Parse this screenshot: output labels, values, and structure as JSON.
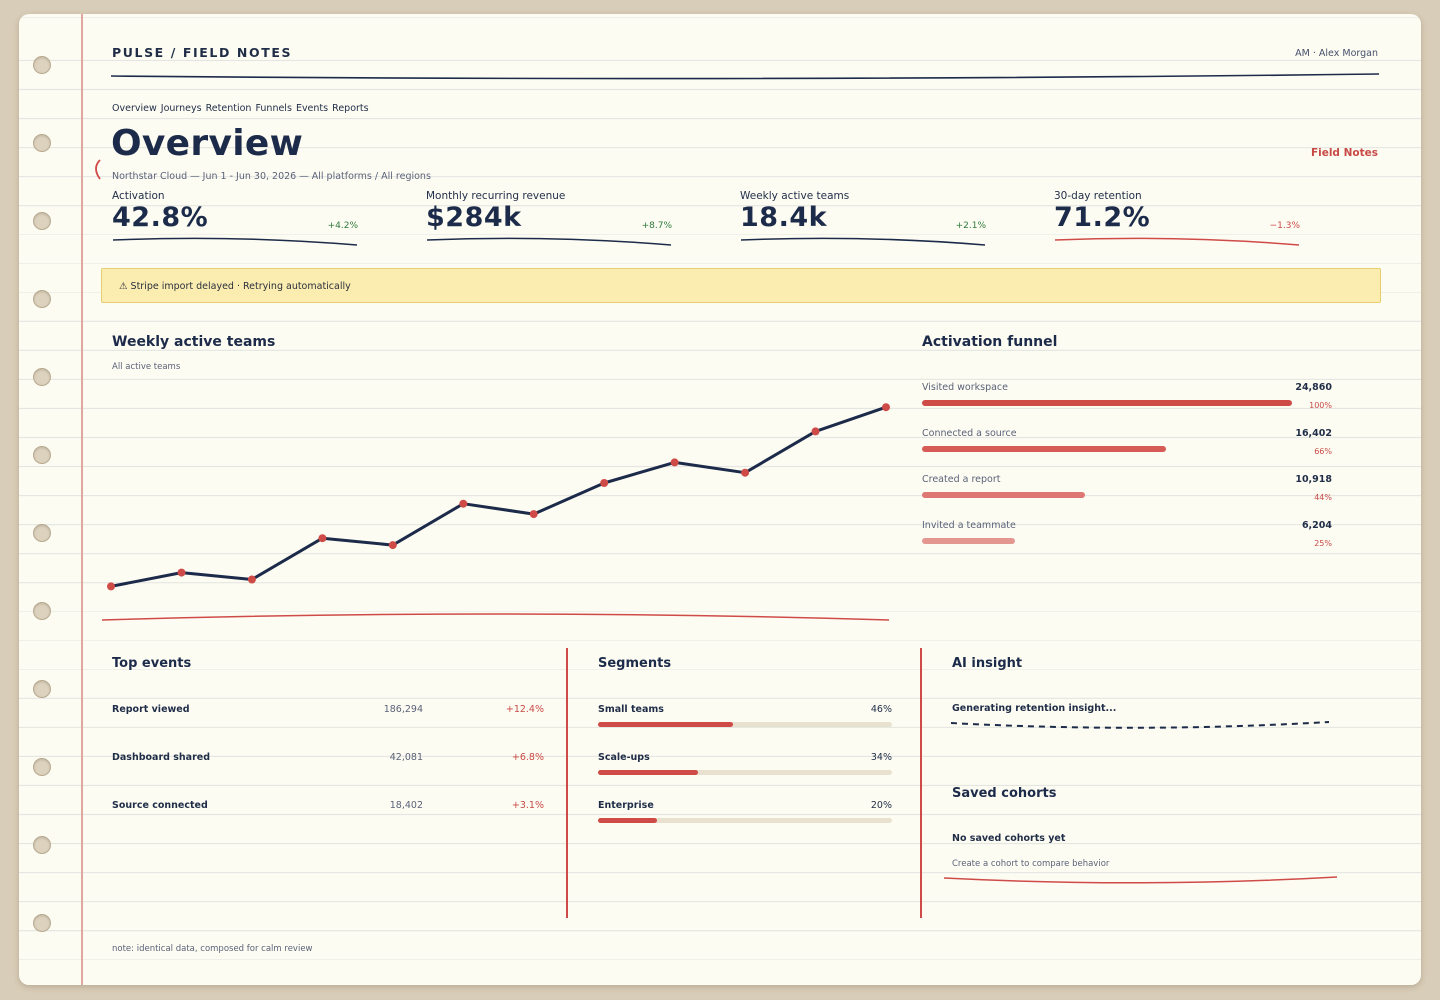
{
  "app": {
    "brand": "PULSE / FIELD NOTES",
    "user": "AM · Alex Morgan"
  },
  "nav": {
    "items": [
      "Overview",
      "Journeys",
      "Retention",
      "Funnels",
      "Events",
      "Reports"
    ]
  },
  "page": {
    "title": "Overview",
    "subtitle": "Northstar Cloud — Jun 1 - Jun 30, 2026 — All platforms / All regions",
    "notebook_label": "Field Notes"
  },
  "kpis": [
    {
      "label": "Activation",
      "value": "42.8%",
      "delta": "+4.2%",
      "trend": "up"
    },
    {
      "label": "Monthly recurring revenue",
      "value": "$284k",
      "delta": "+8.7%",
      "trend": "up"
    },
    {
      "label": "Weekly active teams",
      "value": "18.4k",
      "delta": "+2.1%",
      "trend": "up"
    },
    {
      "label": "30-day retention",
      "value": "71.2%",
      "delta": "−1.3%",
      "trend": "down"
    }
  ],
  "alert": {
    "icon": "warning-icon",
    "text": "⚠ Stripe import delayed · Retrying automatically"
  },
  "weekly_chart": {
    "title": "Weekly active teams",
    "subtitle": "All active teams"
  },
  "chart_data": {
    "type": "line",
    "title": "Weekly active teams",
    "subtitle": "All active teams",
    "x": [
      1,
      2,
      3,
      4,
      5,
      6,
      7,
      8,
      9,
      10,
      11,
      12
    ],
    "series": [
      {
        "values": [
          14.3,
          14.7,
          14.5,
          15.7,
          15.5,
          16.7,
          16.4,
          17.3,
          17.9,
          17.6,
          18.8,
          19.5
        ]
      }
    ],
    "ylim": [
      13.5,
      20.0
    ],
    "grid": false
  },
  "funnel": {
    "title": "Activation funnel",
    "steps": [
      {
        "label": "Visited workspace",
        "count": "24,860",
        "pct": "100%",
        "fraction": 1.0
      },
      {
        "label": "Connected a source",
        "count": "16,402",
        "pct": "66%",
        "fraction": 0.66
      },
      {
        "label": "Created a report",
        "count": "10,918",
        "pct": "44%",
        "fraction": 0.44
      },
      {
        "label": "Invited a teammate",
        "count": "6,204",
        "pct": "25%",
        "fraction": 0.25
      }
    ]
  },
  "top_events": {
    "title": "Top events",
    "rows": [
      {
        "name": "Report viewed",
        "count": "186,294",
        "delta": "+12.4%"
      },
      {
        "name": "Dashboard shared",
        "count": "42,081",
        "delta": "+6.8%"
      },
      {
        "name": "Source connected",
        "count": "18,402",
        "delta": "+3.1%"
      }
    ]
  },
  "segments": {
    "title": "Segments",
    "rows": [
      {
        "name": "Small teams",
        "pct": "46%",
        "fraction": 0.46
      },
      {
        "name": "Scale-ups",
        "pct": "34%",
        "fraction": 0.34
      },
      {
        "name": "Enterprise",
        "pct": "20%",
        "fraction": 0.2
      }
    ]
  },
  "ai_insight": {
    "title": "AI insight",
    "status": "Generating retention insight..."
  },
  "saved_cohorts": {
    "title": "Saved cohorts",
    "empty": "No saved cohorts yet",
    "hint": "Create a cohort to compare behavior"
  },
  "footer": {
    "note": "note: identical data, composed for calm review"
  },
  "colors": {
    "ink": "#1d2b4a",
    "accent_red": "#cf4b47",
    "positive": "#2f7a3b",
    "paper": "#fdfcf3",
    "alert_bg": "#fbedb0"
  }
}
